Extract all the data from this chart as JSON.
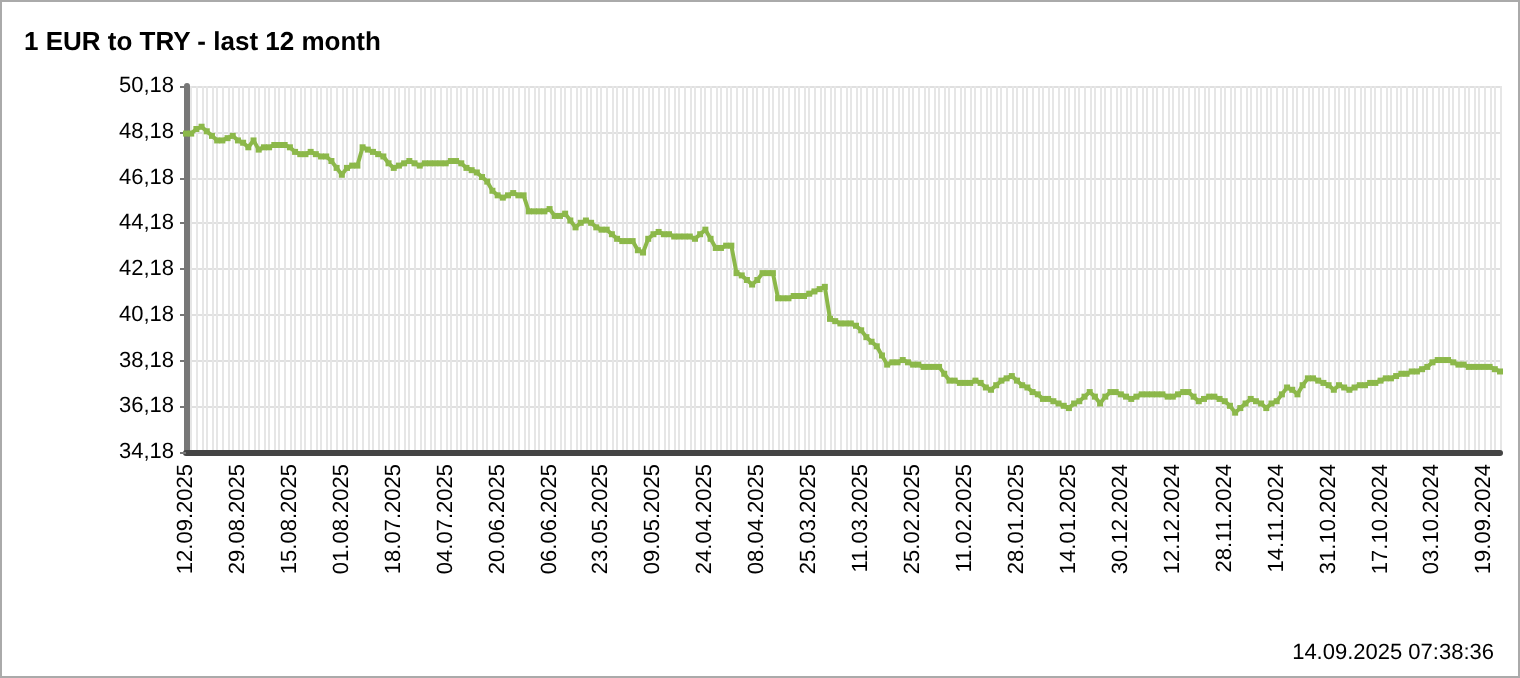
{
  "chart_data": {
    "type": "line",
    "title": "1 EUR to TRY - last 12 month",
    "annotations": [
      "14.09.2025 07:38:36"
    ],
    "categories": [
      "12.09.2025",
      null,
      null,
      null,
      null,
      null,
      null,
      null,
      null,
      null,
      "29.08.2025",
      null,
      null,
      null,
      null,
      null,
      null,
      null,
      null,
      null,
      "15.08.2025",
      null,
      null,
      null,
      null,
      null,
      null,
      null,
      null,
      null,
      "01.08.2025",
      null,
      null,
      null,
      null,
      null,
      null,
      null,
      null,
      null,
      "18.07.2025",
      null,
      null,
      null,
      null,
      null,
      null,
      null,
      null,
      null,
      "04.07.2025",
      null,
      null,
      null,
      null,
      null,
      null,
      null,
      null,
      null,
      "20.06.2025",
      null,
      null,
      null,
      null,
      null,
      null,
      null,
      null,
      null,
      "06.06.2025",
      null,
      null,
      null,
      null,
      null,
      null,
      null,
      null,
      null,
      "23.05.2025",
      null,
      null,
      null,
      null,
      null,
      null,
      null,
      null,
      null,
      "09.05.2025",
      null,
      null,
      null,
      null,
      null,
      null,
      null,
      null,
      null,
      "24.04.2025",
      null,
      null,
      null,
      null,
      null,
      null,
      null,
      null,
      null,
      "08.04.2025",
      null,
      null,
      null,
      null,
      null,
      null,
      null,
      null,
      null,
      "25.03.2025",
      null,
      null,
      null,
      null,
      null,
      null,
      null,
      null,
      null,
      "11.03.2025",
      null,
      null,
      null,
      null,
      null,
      null,
      null,
      null,
      null,
      "25.02.2025",
      null,
      null,
      null,
      null,
      null,
      null,
      null,
      null,
      null,
      "11.02.2025",
      null,
      null,
      null,
      null,
      null,
      null,
      null,
      null,
      null,
      "28.01.2025",
      null,
      null,
      null,
      null,
      null,
      null,
      null,
      null,
      null,
      "14.01.2025",
      null,
      null,
      null,
      null,
      null,
      null,
      null,
      null,
      null,
      "30.12.2024",
      null,
      null,
      null,
      null,
      null,
      null,
      null,
      null,
      null,
      "12.12.2024",
      null,
      null,
      null,
      null,
      null,
      null,
      null,
      null,
      null,
      "28.11.2024",
      null,
      null,
      null,
      null,
      null,
      null,
      null,
      null,
      null,
      "14.11.2024",
      null,
      null,
      null,
      null,
      null,
      null,
      null,
      null,
      null,
      "31.10.2024",
      null,
      null,
      null,
      null,
      null,
      null,
      null,
      null,
      null,
      "17.10.2024",
      null,
      null,
      null,
      null,
      null,
      null,
      null,
      null,
      null,
      "03.10.2024",
      null,
      null,
      null,
      null,
      null,
      null,
      null,
      null,
      null,
      "19.09.2024",
      null,
      null,
      null
    ],
    "series": [
      {
        "color": "#8cb84a",
        "values": [
          48.1,
          48.1,
          48.3,
          48.4,
          48.2,
          48.0,
          47.8,
          47.8,
          47.9,
          48.0,
          47.8,
          47.7,
          47.5,
          47.8,
          47.4,
          47.5,
          47.5,
          47.6,
          47.6,
          47.6,
          47.5,
          47.3,
          47.2,
          47.2,
          47.3,
          47.2,
          47.1,
          47.1,
          46.9,
          46.6,
          46.3,
          46.6,
          46.7,
          46.7,
          47.5,
          47.4,
          47.3,
          47.2,
          47.1,
          46.8,
          46.6,
          46.7,
          46.8,
          46.9,
          46.8,
          46.7,
          46.8,
          46.8,
          46.8,
          46.8,
          46.8,
          46.9,
          46.9,
          46.8,
          46.6,
          46.5,
          46.4,
          46.2,
          46.0,
          45.6,
          45.4,
          45.3,
          45.4,
          45.5,
          45.4,
          45.4,
          44.7,
          44.7,
          44.7,
          44.7,
          44.8,
          44.5,
          44.5,
          44.6,
          44.3,
          44.0,
          44.2,
          44.3,
          44.2,
          44.0,
          43.9,
          43.9,
          43.7,
          43.5,
          43.4,
          43.4,
          43.4,
          43.0,
          42.9,
          43.5,
          43.7,
          43.8,
          43.7,
          43.7,
          43.6,
          43.6,
          43.6,
          43.6,
          43.5,
          43.7,
          43.9,
          43.5,
          43.1,
          43.1,
          43.2,
          43.2,
          42.0,
          41.9,
          41.7,
          41.5,
          41.7,
          42.0,
          42.0,
          42.0,
          40.9,
          40.9,
          40.9,
          41.0,
          41.0,
          41.0,
          41.1,
          41.2,
          41.3,
          41.4,
          40.0,
          39.9,
          39.8,
          39.8,
          39.8,
          39.7,
          39.5,
          39.2,
          39.0,
          38.8,
          38.4,
          38.0,
          38.1,
          38.1,
          38.2,
          38.1,
          38.0,
          38.0,
          37.9,
          37.9,
          37.9,
          37.9,
          37.6,
          37.3,
          37.3,
          37.2,
          37.2,
          37.2,
          37.3,
          37.2,
          37.0,
          36.9,
          37.1,
          37.3,
          37.4,
          37.5,
          37.3,
          37.1,
          37.0,
          36.8,
          36.7,
          36.5,
          36.5,
          36.4,
          36.3,
          36.2,
          36.1,
          36.3,
          36.4,
          36.6,
          36.8,
          36.6,
          36.3,
          36.6,
          36.8,
          36.8,
          36.7,
          36.6,
          36.5,
          36.6,
          36.7,
          36.7,
          36.7,
          36.7,
          36.7,
          36.6,
          36.6,
          36.7,
          36.8,
          36.8,
          36.6,
          36.4,
          36.5,
          36.6,
          36.6,
          36.5,
          36.4,
          36.2,
          35.9,
          36.1,
          36.3,
          36.5,
          36.4,
          36.3,
          36.1,
          36.3,
          36.4,
          36.7,
          37.0,
          36.9,
          36.7,
          37.1,
          37.4,
          37.4,
          37.3,
          37.2,
          37.1,
          36.9,
          37.1,
          37.0,
          36.9,
          37.0,
          37.1,
          37.1,
          37.2,
          37.2,
          37.3,
          37.4,
          37.4,
          37.5,
          37.6,
          37.6,
          37.7,
          37.7,
          37.8,
          37.9,
          38.1,
          38.2,
          38.2,
          38.2,
          38.1,
          38.0,
          38.0,
          37.9,
          37.9,
          37.9,
          37.9,
          37.9,
          37.8,
          37.7
        ]
      }
    ],
    "ylim": [
      34.18,
      50.18
    ],
    "yticks": [
      {
        "value": 34.18,
        "label": "34,18"
      },
      {
        "value": 36.18,
        "label": "36,18"
      },
      {
        "value": 38.18,
        "label": "38,18"
      },
      {
        "value": 40.18,
        "label": "40,18"
      },
      {
        "value": 42.18,
        "label": "42,18"
      },
      {
        "value": 44.18,
        "label": "44,18"
      },
      {
        "value": 46.18,
        "label": "46,18"
      },
      {
        "value": 48.18,
        "label": "48,18"
      },
      {
        "value": 50.18,
        "label": "50,18"
      }
    ],
    "grid": true,
    "marker": "square",
    "line_style": "solid"
  }
}
